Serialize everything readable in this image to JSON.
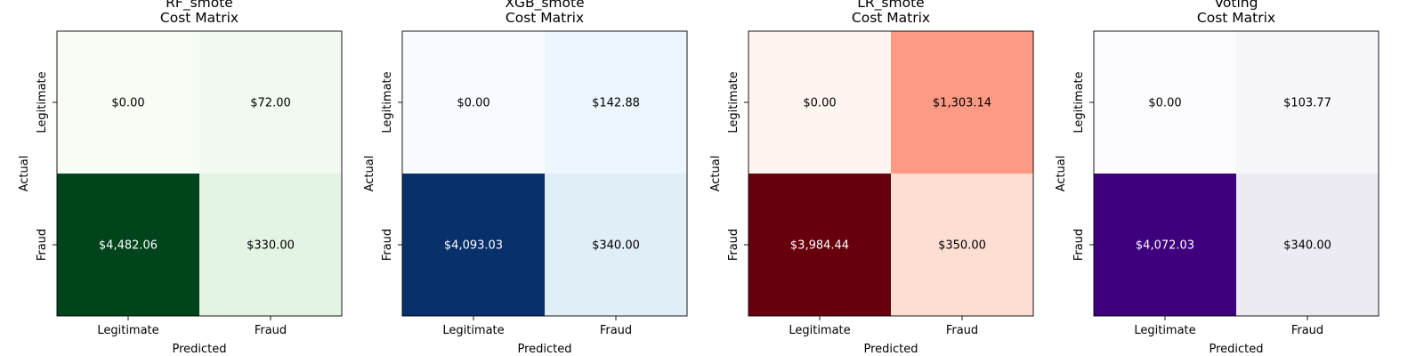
{
  "chart_data": [
    {
      "type": "heatmap",
      "title": "RF_smote\nCost Matrix",
      "xlabel": "Predicted",
      "ylabel": "Actual",
      "x_categories": [
        "Legitimate",
        "Fraud"
      ],
      "y_categories": [
        "Legitimate",
        "Fraud"
      ],
      "values": [
        [
          0.0,
          72.0
        ],
        [
          4482.06,
          330.0
        ]
      ],
      "labels": [
        [
          "$0.00",
          "$72.00"
        ],
        [
          "$4,482.06",
          "$330.00"
        ]
      ],
      "colormap": "Greens",
      "colors": {
        "low": "#f7fcf5",
        "high": "#00441b"
      }
    },
    {
      "type": "heatmap",
      "title": "XGB_smote\nCost Matrix",
      "xlabel": "Predicted",
      "ylabel": "Actual",
      "x_categories": [
        "Legitimate",
        "Fraud"
      ],
      "y_categories": [
        "Legitimate",
        "Fraud"
      ],
      "values": [
        [
          0.0,
          142.88
        ],
        [
          4093.03,
          340.0
        ]
      ],
      "labels": [
        [
          "$0.00",
          "$142.88"
        ],
        [
          "$4,093.03",
          "$340.00"
        ]
      ],
      "colormap": "Blues",
      "colors": {
        "low": "#f7fbff",
        "high": "#08306b"
      }
    },
    {
      "type": "heatmap",
      "title": "LR_smote\nCost Matrix",
      "xlabel": "Predicted",
      "ylabel": "Actual",
      "x_categories": [
        "Legitimate",
        "Fraud"
      ],
      "y_categories": [
        "Legitimate",
        "Fraud"
      ],
      "values": [
        [
          0.0,
          1303.14
        ],
        [
          3984.44,
          350.0
        ]
      ],
      "labels": [
        [
          "$0.00",
          "$1,303.14"
        ],
        [
          "$3,984.44",
          "$350.00"
        ]
      ],
      "colormap": "Reds",
      "colors": {
        "low": "#fff5f0",
        "high": "#67000d"
      }
    },
    {
      "type": "heatmap",
      "title": "Voting\nCost Matrix",
      "xlabel": "Predicted",
      "ylabel": "Actual",
      "x_categories": [
        "Legitimate",
        "Fraud"
      ],
      "y_categories": [
        "Legitimate",
        "Fraud"
      ],
      "values": [
        [
          0.0,
          103.77
        ],
        [
          4072.03,
          340.0
        ]
      ],
      "labels": [
        [
          "$0.00",
          "$103.77"
        ],
        [
          "$4,072.03",
          "$340.00"
        ]
      ],
      "colormap": "Purples",
      "colors": {
        "low": "#fcfbfd",
        "high": "#3f007d"
      }
    }
  ]
}
